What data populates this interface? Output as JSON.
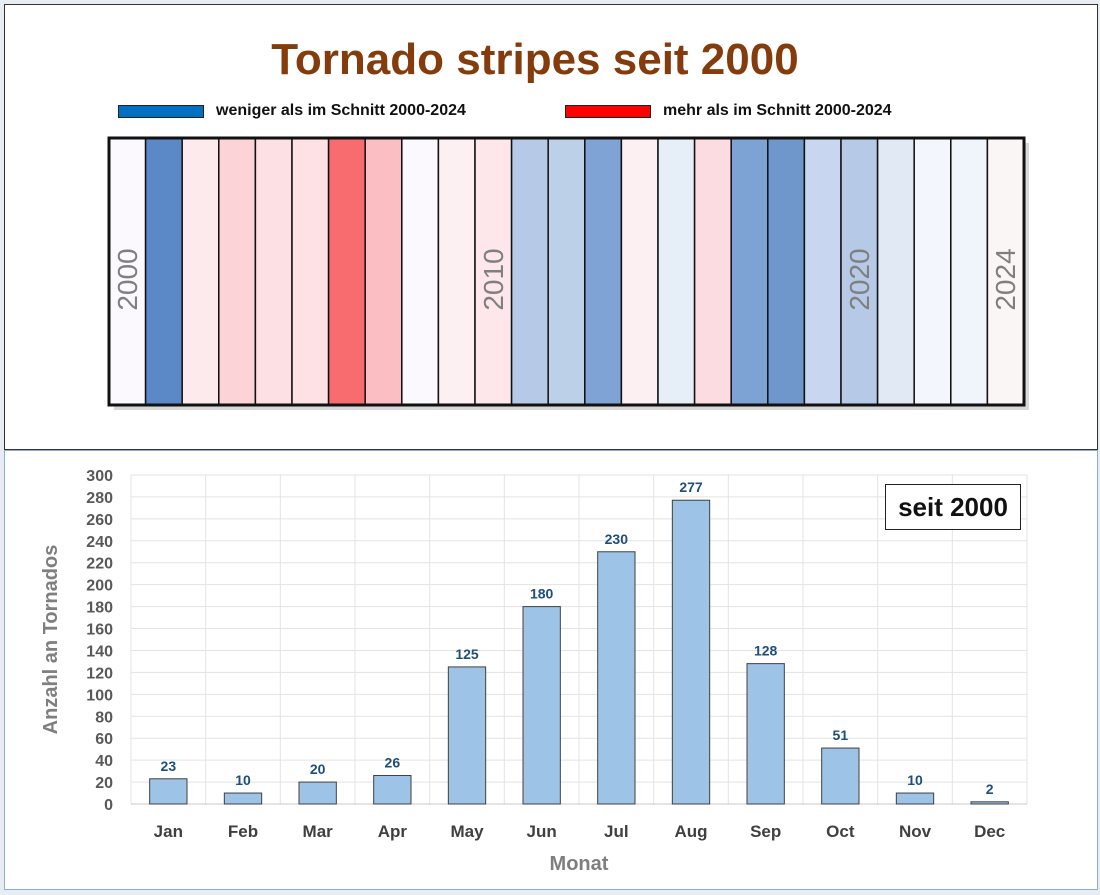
{
  "stripes": {
    "title": "Tornado stripes seit 2000",
    "legend": [
      {
        "label": "weniger als im Schnitt 2000-2024",
        "color": "#0070c0"
      },
      {
        "label": "mehr als im Schnitt 2000-2024",
        "color": "#ff0000"
      }
    ],
    "year_labels": [
      "2000",
      "2010",
      "2020",
      "2024"
    ],
    "stripe_colors": [
      "#fbf9fd",
      "#5b89c8",
      "#fdeaed",
      "#fcd3d7",
      "#fde0e3",
      "#fde1e4",
      "#f86b6e",
      "#fbbec2",
      "#fbf9fd",
      "#fdf0f2",
      "#fde7ea",
      "#b6cae8",
      "#bcd0e8",
      "#7ea3d4",
      "#fdf0f2",
      "#e6eef8",
      "#fcdce0",
      "#7da2d4",
      "#6f97cc",
      "#c8d7ef",
      "#b6c9e7",
      "#e1e9f4",
      "#f3f6fc",
      "#f0f4fb",
      "#fbf6f6"
    ]
  },
  "chart_data": {
    "type": "bar",
    "categories": [
      "Jan",
      "Feb",
      "Mar",
      "Apr",
      "May",
      "Jun",
      "Jul",
      "Aug",
      "Sep",
      "Oct",
      "Nov",
      "Dec"
    ],
    "values": [
      23,
      10,
      20,
      26,
      125,
      180,
      230,
      277,
      128,
      51,
      10,
      2
    ],
    "title": "",
    "xlabel": "Monat",
    "ylabel": "Anzahl an Tornados",
    "ylim": [
      0,
      300
    ],
    "yticks": [
      0,
      20,
      40,
      60,
      80,
      100,
      120,
      140,
      160,
      180,
      200,
      220,
      240,
      260,
      280,
      300
    ],
    "grid": true,
    "data_labels": true,
    "bar_color": "#9dc3e6",
    "annotation": "seit 2000"
  }
}
